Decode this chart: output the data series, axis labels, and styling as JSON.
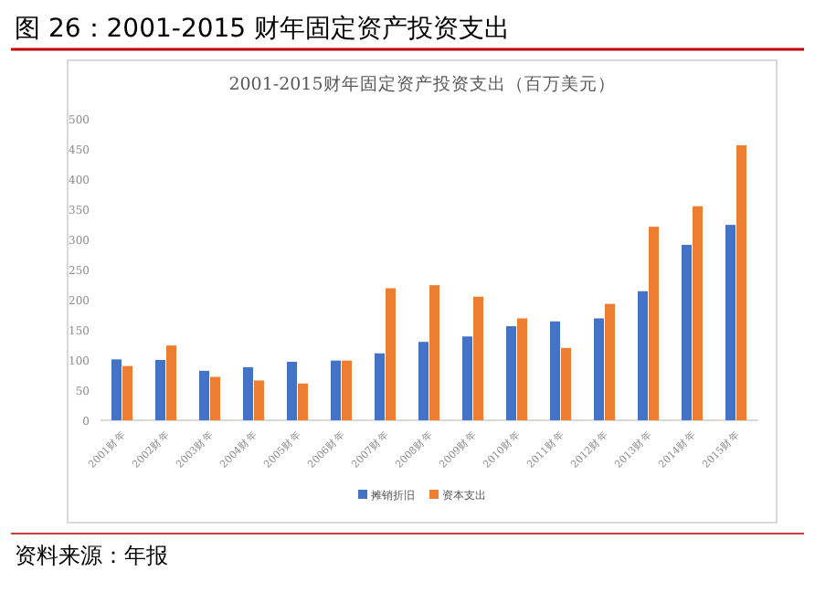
{
  "chart_data": {
    "type": "bar",
    "title": "图 26：2001-2015 财年固定资产投资支出",
    "subtitle": "2001-2015财年固定资产投资支出（百万美元）",
    "categories": [
      "2001财年",
      "2002财年",
      "2003财年",
      "2004财年",
      "2005财年",
      "2006财年",
      "2007财年",
      "2008财年",
      "2009财年",
      "2010财年",
      "2011财年",
      "2012财年",
      "2013财年",
      "2014财年",
      "2015财年"
    ],
    "series": [
      {
        "name": "摊销折旧",
        "color": "#4472c4",
        "values": [
          101,
          100,
          82,
          88,
          97,
          99,
          111,
          130,
          139,
          156,
          164,
          169,
          214,
          291,
          324
        ]
      },
      {
        "name": "资本支出",
        "color": "#ed7d31",
        "values": [
          90,
          124,
          72,
          66,
          61,
          99,
          219,
          224,
          205,
          169,
          120,
          193,
          321,
          355,
          456
        ]
      }
    ],
    "ylim": [
      0,
      500
    ],
    "yticks": [
      0,
      50,
      100,
      150,
      200,
      250,
      300,
      350,
      400,
      450,
      500
    ],
    "grid": false,
    "legend": "bottom",
    "annotations": [
      "资料来源：年报"
    ]
  }
}
